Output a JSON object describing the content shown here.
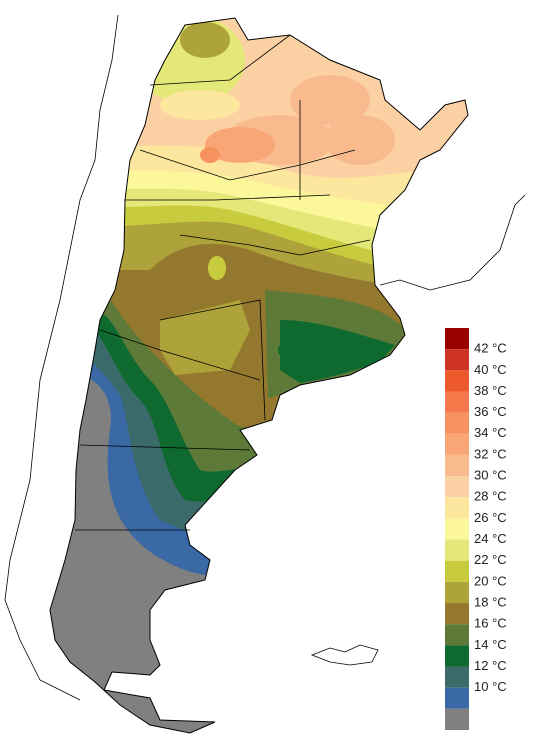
{
  "legend": {
    "labels": [
      "42 °C",
      "40 °C",
      "38 °C",
      "36 °C",
      "34 °C",
      "32 °C",
      "30 °C",
      "28 °C",
      "26 °C",
      "24 °C",
      "22 °C",
      "20 °C",
      "18 °C",
      "16 °C",
      "14 °C",
      "12 °C",
      "10 °C"
    ],
    "colors": [
      "#990000",
      "#cc3322",
      "#ee5a2c",
      "#f5794a",
      "#f7915e",
      "#f8a676",
      "#f9bb8e",
      "#fbd0a2",
      "#fde69e",
      "#fbf79a",
      "#e3e878",
      "#c9cb3e",
      "#aea23a",
      "#94782e",
      "#5d7a38",
      "#0f6a30",
      "#3a6b6a",
      "#3b69a6",
      "#808080"
    ]
  }
}
